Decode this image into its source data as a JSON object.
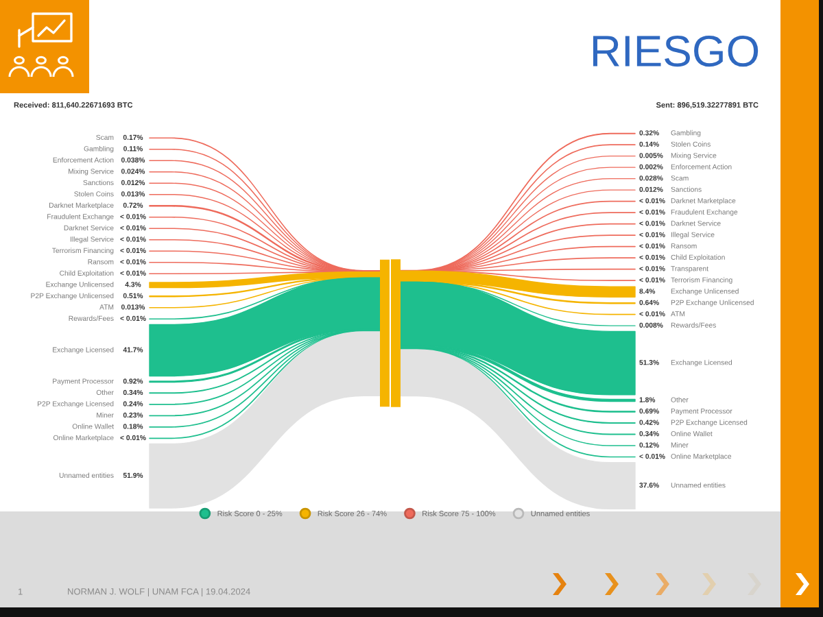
{
  "chart_data": [
    {
      "type": "other",
      "title": "RIESGO",
      "subtitle": "Received: 811,640.22671693 BTC",
      "categories": [
        "Scam",
        "Gambling",
        "Enforcement Action",
        "Mixing Service",
        "Sanctions",
        "Stolen Coins",
        "Darknet Marketplace",
        "Fraudulent Exchange",
        "Darknet Service",
        "Illegal Service",
        "Terrorism Financing",
        "Ransom",
        "Child Exploitation",
        "Exchange Unlicensed",
        "P2P Exchange Unlicensed",
        "ATM",
        "Rewards/Fees",
        "Exchange Licensed",
        "Payment Processor",
        "Other",
        "P2P Exchange Licensed",
        "Miner",
        "Online Wallet",
        "Online Marketplace",
        "Unnamed entities"
      ],
      "series": [
        {
          "name": "Risk Score 0 - 25%",
          "color": "#1ebf8e",
          "values": [
            null,
            null,
            null,
            null,
            null,
            null,
            null,
            null,
            null,
            null,
            null,
            null,
            null,
            null,
            null,
            null,
            null,
            41.7,
            0.92,
            0.34,
            0.24,
            0.23,
            0.18,
            null,
            null
          ],
          "value_labels": [
            null,
            null,
            null,
            null,
            null,
            null,
            null,
            null,
            null,
            null,
            null,
            null,
            null,
            null,
            null,
            null,
            "< 0.01%",
            "41.7%",
            "0.92%",
            "0.34%",
            "0.24%",
            "0.23%",
            "0.18%",
            "< 0.01%",
            null
          ]
        },
        {
          "name": "Risk Score 26 - 74%",
          "color": "#f5b400",
          "values": [
            null,
            null,
            null,
            null,
            null,
            null,
            null,
            null,
            null,
            null,
            null,
            null,
            null,
            4.3,
            0.51,
            0.013,
            null,
            null,
            null,
            null,
            null,
            null,
            null,
            null,
            null
          ],
          "value_labels": [
            null,
            null,
            null,
            null,
            null,
            null,
            null,
            null,
            null,
            null,
            null,
            null,
            null,
            "4.3%",
            "0.51%",
            "0.013%",
            null,
            null,
            null,
            null,
            null,
            null,
            null,
            null,
            null
          ]
        },
        {
          "name": "Risk Score 75 - 100%",
          "color": "#ee6b5c",
          "values": [
            0.17,
            0.11,
            0.038,
            0.024,
            0.012,
            0.013,
            0.72,
            null,
            null,
            null,
            null,
            null,
            null,
            null,
            null,
            null,
            null,
            null,
            null,
            null,
            null,
            null,
            null,
            null,
            null
          ],
          "value_labels": [
            "0.17%",
            "0.11%",
            "0.038%",
            "0.024%",
            "0.012%",
            "0.013%",
            "0.72%",
            "< 0.01%",
            "< 0.01%",
            "< 0.01%",
            "< 0.01%",
            "< 0.01%",
            "< 0.01%",
            null,
            null,
            null,
            null,
            null,
            null,
            null,
            null,
            null,
            null,
            null,
            null
          ]
        },
        {
          "name": "Unnamed entities",
          "color": "#e2e2e2",
          "values": [
            null,
            null,
            null,
            null,
            null,
            null,
            null,
            null,
            null,
            null,
            null,
            null,
            null,
            null,
            null,
            null,
            null,
            null,
            null,
            null,
            null,
            null,
            null,
            null,
            51.9
          ],
          "value_labels": [
            null,
            null,
            null,
            null,
            null,
            null,
            null,
            null,
            null,
            null,
            null,
            null,
            null,
            null,
            null,
            null,
            null,
            null,
            null,
            null,
            null,
            null,
            null,
            null,
            "51.9%"
          ]
        }
      ],
      "legend": "bottom",
      "annotations": [
        "NORMAN J. WOLF | UNAM FCA | 19.04.2024",
        "1"
      ]
    },
    {
      "type": "other",
      "subtitle": "Sent: 896,519.32277891 BTC",
      "categories": [
        "Gambling",
        "Stolen Coins",
        "Mixing Service",
        "Enforcement Action",
        "Scam",
        "Sanctions",
        "Darknet Marketplace",
        "Fraudulent Exchange",
        "Darknet Service",
        "Illegal Service",
        "Ransom",
        "Child Exploitation",
        "Transparent",
        "Terrorism Financing",
        "Exchange Unlicensed",
        "P2P Exchange Unlicensed",
        "ATM",
        "Rewards/Fees",
        "Exchange Licensed",
        "Other",
        "Payment Processor",
        "P2P Exchange Licensed",
        "Online Wallet",
        "Miner",
        "Online Marketplace",
        "Unnamed entities"
      ],
      "series": [
        {
          "color": "#1ebf8e",
          "values": [
            null,
            null,
            null,
            null,
            null,
            null,
            null,
            null,
            null,
            null,
            null,
            null,
            null,
            null,
            null,
            null,
            null,
            0.008,
            51.3,
            1.8,
            0.69,
            0.42,
            0.34,
            0.12,
            null,
            null
          ],
          "value_labels": [
            null,
            null,
            null,
            null,
            null,
            null,
            null,
            null,
            null,
            null,
            null,
            null,
            null,
            null,
            null,
            null,
            null,
            "0.008%",
            "51.3%",
            "1.8%",
            "0.69%",
            "0.42%",
            "0.34%",
            "0.12%",
            "< 0.01%",
            null
          ]
        },
        {
          "color": "#f5b400",
          "values": [
            null,
            null,
            null,
            null,
            null,
            null,
            null,
            null,
            null,
            null,
            null,
            null,
            null,
            null,
            8.4,
            0.64,
            null,
            null,
            null,
            null,
            null,
            null,
            null,
            null,
            null,
            null
          ],
          "value_labels": [
            null,
            null,
            null,
            null,
            null,
            null,
            null,
            null,
            null,
            null,
            null,
            null,
            null,
            null,
            "8.4%",
            "0.64%",
            "< 0.01%",
            null,
            null,
            null,
            null,
            null,
            null,
            null,
            null,
            null
          ]
        },
        {
          "color": "#ee6b5c",
          "values": [
            0.32,
            0.14,
            0.005,
            0.002,
            0.028,
            0.012,
            null,
            null,
            null,
            null,
            null,
            null,
            null,
            null,
            null,
            null,
            null,
            null,
            null,
            null,
            null,
            null,
            null,
            null,
            null,
            null
          ],
          "value_labels": [
            "0.32%",
            "0.14%",
            "0.005%",
            "0.002%",
            "0.028%",
            "0.012%",
            "< 0.01%",
            "< 0.01%",
            "< 0.01%",
            "< 0.01%",
            "< 0.01%",
            "< 0.01%",
            "< 0.01%",
            "< 0.01%",
            null,
            null,
            null,
            null,
            null,
            null,
            null,
            null,
            null,
            null,
            null,
            null
          ]
        },
        {
          "color": "#e2e2e2",
          "values": [
            null,
            null,
            null,
            null,
            null,
            null,
            null,
            null,
            null,
            null,
            null,
            null,
            null,
            null,
            null,
            null,
            null,
            null,
            null,
            null,
            null,
            null,
            null,
            null,
            null,
            37.6
          ],
          "value_labels": [
            null,
            null,
            null,
            null,
            null,
            null,
            null,
            null,
            null,
            null,
            null,
            null,
            null,
            null,
            null,
            null,
            null,
            null,
            null,
            null,
            null,
            null,
            null,
            null,
            null,
            "37.6%"
          ]
        }
      ]
    }
  ]
}
